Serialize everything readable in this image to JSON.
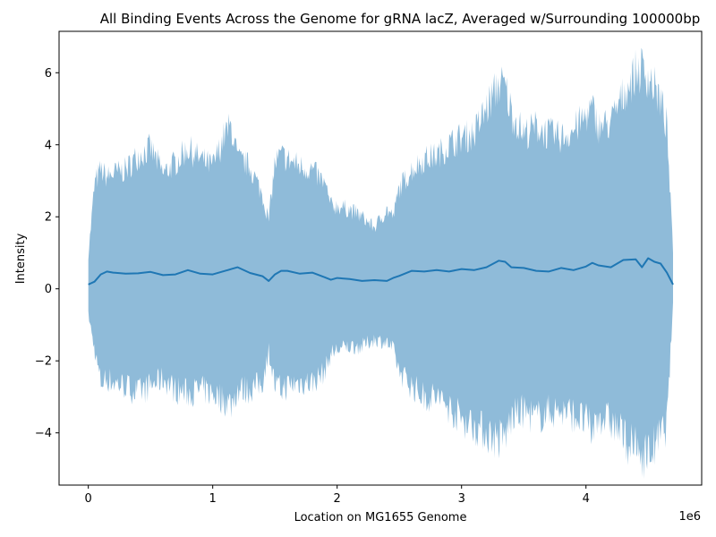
{
  "chart_data": {
    "type": "area",
    "title": "All Binding Events Across the Genome for gRNA lacZ, Averaged w/Surrounding 100000bp",
    "xlabel": "Location on MG1655 Genome",
    "ylabel": "Intensity",
    "x_offset_label": "1e6",
    "xlim": [
      -0.235,
      4.93
    ],
    "ylim": [
      -5.45,
      7.15
    ],
    "x_ticks": [
      0,
      1,
      2,
      3,
      4
    ],
    "x_tick_labels": [
      "0",
      "1",
      "2",
      "3",
      "4"
    ],
    "y_ticks": [
      -4,
      -2,
      0,
      2,
      4,
      6
    ],
    "y_tick_labels": [
      "−4",
      "−2",
      "0",
      "2",
      "4",
      "6"
    ],
    "grid": false,
    "colors": {
      "line": "#1f77b4",
      "band": "#8fbbd9"
    },
    "series": [
      {
        "x": [
          0,
          0.05,
          0.1,
          0.15,
          0.2,
          0.3,
          0.4,
          0.5,
          0.6,
          0.7,
          0.8,
          0.9,
          1.0,
          1.1,
          1.15,
          1.2,
          1.3,
          1.4,
          1.45,
          1.5,
          1.55,
          1.6,
          1.7,
          1.8,
          1.9,
          1.95,
          2.0,
          2.1,
          2.2,
          2.3,
          2.4,
          2.45,
          2.5,
          2.6,
          2.7,
          2.8,
          2.9,
          3.0,
          3.1,
          3.2,
          3.3,
          3.35,
          3.4,
          3.5,
          3.6,
          3.7,
          3.8,
          3.9,
          4.0,
          4.05,
          4.1,
          4.2,
          4.3,
          4.4,
          4.45,
          4.5,
          4.55,
          4.6,
          4.65,
          4.7
        ],
        "y": [
          0.12,
          0.2,
          0.4,
          0.48,
          0.45,
          0.42,
          0.43,
          0.47,
          0.38,
          0.4,
          0.52,
          0.42,
          0.4,
          0.5,
          0.55,
          0.6,
          0.44,
          0.35,
          0.22,
          0.4,
          0.5,
          0.5,
          0.42,
          0.45,
          0.32,
          0.25,
          0.3,
          0.27,
          0.22,
          0.24,
          0.22,
          0.3,
          0.36,
          0.5,
          0.48,
          0.52,
          0.48,
          0.55,
          0.52,
          0.6,
          0.78,
          0.75,
          0.6,
          0.58,
          0.5,
          0.48,
          0.58,
          0.52,
          0.62,
          0.72,
          0.65,
          0.6,
          0.8,
          0.82,
          0.6,
          0.85,
          0.75,
          0.7,
          0.45,
          0.12
        ],
        "upper": [
          0.9,
          2.9,
          3.3,
          3.1,
          3.2,
          3.3,
          3.7,
          3.9,
          3.2,
          3.5,
          3.9,
          3.6,
          3.4,
          4.3,
          4.5,
          3.6,
          3.4,
          2.6,
          1.9,
          3.5,
          3.7,
          3.6,
          3.4,
          3.3,
          2.9,
          2.3,
          2.3,
          2.2,
          2.0,
          1.7,
          2.2,
          2.0,
          2.8,
          3.3,
          3.6,
          3.7,
          4.0,
          4.2,
          4.3,
          5.0,
          5.7,
          5.6,
          4.9,
          4.3,
          4.5,
          4.3,
          4.2,
          4.4,
          4.8,
          5.0,
          4.5,
          4.6,
          5.4,
          6.0,
          6.1,
          5.9,
          5.6,
          5.2,
          4.5,
          1.0
        ],
        "lower": [
          -0.7,
          -1.7,
          -2.6,
          -2.5,
          -2.6,
          -2.7,
          -2.9,
          -2.7,
          -2.5,
          -2.8,
          -2.9,
          -2.8,
          -2.9,
          -3.1,
          -3.2,
          -2.8,
          -2.8,
          -2.6,
          -1.7,
          -2.7,
          -2.8,
          -2.7,
          -2.6,
          -2.6,
          -2.3,
          -1.8,
          -1.7,
          -1.6,
          -1.6,
          -1.4,
          -1.5,
          -1.7,
          -2.3,
          -2.7,
          -3.0,
          -3.0,
          -3.3,
          -3.6,
          -3.8,
          -4.0,
          -4.2,
          -4.1,
          -3.6,
          -3.4,
          -3.6,
          -3.4,
          -3.4,
          -3.5,
          -3.7,
          -4.0,
          -3.5,
          -3.7,
          -4.1,
          -4.5,
          -4.6,
          -4.6,
          -4.4,
          -4.1,
          -3.8,
          -0.4
        ]
      }
    ]
  }
}
